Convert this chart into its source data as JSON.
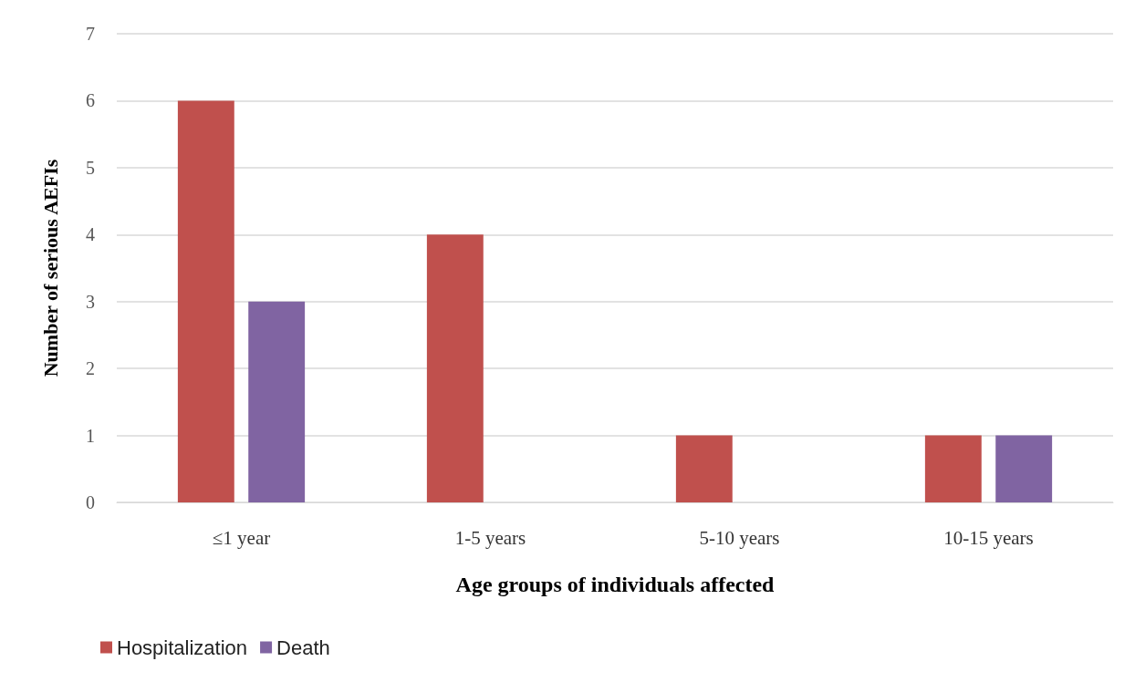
{
  "chart_data": {
    "type": "bar",
    "xlabel": "Age groups of individuals affected",
    "ylabel": "Number of serious AEFIs",
    "categories": [
      "≤1 year",
      "1-5 years",
      "5-10 years",
      "10-15 years"
    ],
    "series": [
      {
        "name": "Hospitalization",
        "color": "#c0504d",
        "values": [
          6,
          4,
          1,
          1
        ]
      },
      {
        "name": "Death",
        "color": "#8064a2",
        "values": [
          3,
          0,
          0,
          1
        ]
      }
    ],
    "ylim": [
      0,
      7
    ],
    "yticks": [
      0,
      1,
      2,
      3,
      4,
      5,
      6,
      7
    ],
    "grid": "y",
    "legend": "bottom left"
  }
}
